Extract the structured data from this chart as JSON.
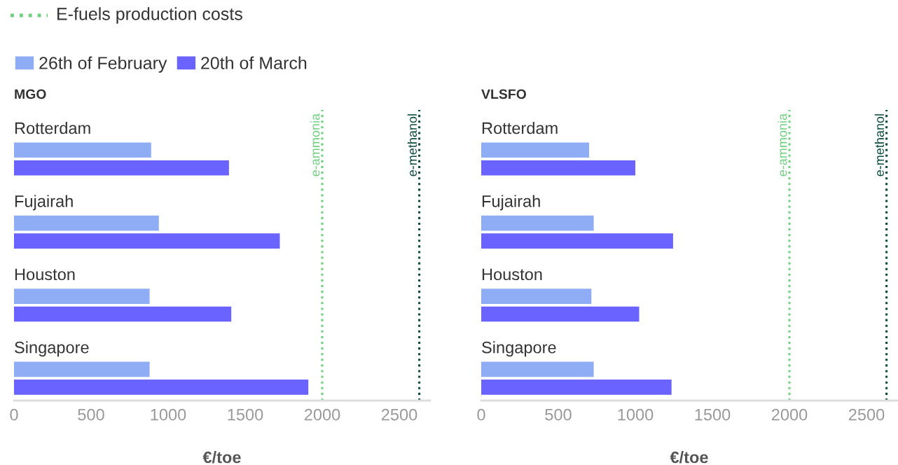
{
  "chart_data": [
    {
      "type": "bar",
      "orientation": "horizontal",
      "title": "MGO",
      "xlabel": "€/toe",
      "categories": [
        "Rotterdam",
        "Fujairah",
        "Houston",
        "Singapore"
      ],
      "series": [
        {
          "name": "26th of February",
          "color": "#8fadf5",
          "values": [
            890,
            940,
            880,
            880
          ]
        },
        {
          "name": "20th of March",
          "color": "#6a63ff",
          "values": [
            1395,
            1725,
            1410,
            1910
          ]
        }
      ],
      "xlim": [
        0,
        2700
      ],
      "xticks": [
        0,
        500,
        1000,
        1500,
        2000,
        2500
      ],
      "grid": false,
      "legend": "top",
      "ref_lines": [
        {
          "axis": "x",
          "value": 2000,
          "label": "e-ammonia",
          "color": "#6fcf7f",
          "line_style": "dotted"
        },
        {
          "axis": "x",
          "value": 2630,
          "label": "e-methanol",
          "color": "#0b4a3a",
          "line_style": "dotted"
        }
      ],
      "annotations": [
        "E-fuels production costs"
      ]
    },
    {
      "type": "bar",
      "orientation": "horizontal",
      "title": "VLSFO",
      "xlabel": "€/toe",
      "categories": [
        "Rotterdam",
        "Fujairah",
        "Houston",
        "Singapore"
      ],
      "series": [
        {
          "color": "#8fadf5",
          "values": [
            700,
            730,
            715,
            730
          ]
        },
        {
          "color": "#6a63ff",
          "values": [
            1000,
            1245,
            1025,
            1235
          ]
        }
      ],
      "xlim": [
        0,
        2700
      ],
      "xticks": [
        0,
        500,
        1000,
        1500,
        2000,
        2500
      ],
      "grid": false,
      "ref_lines": [
        {
          "axis": "x",
          "value": 2000,
          "label": "e-ammonia",
          "color": "#6fcf7f",
          "line_style": "dotted"
        },
        {
          "axis": "x",
          "value": 2630,
          "label": "e-methanol",
          "color": "#0b4a3a",
          "line_style": "dotted"
        }
      ]
    }
  ]
}
